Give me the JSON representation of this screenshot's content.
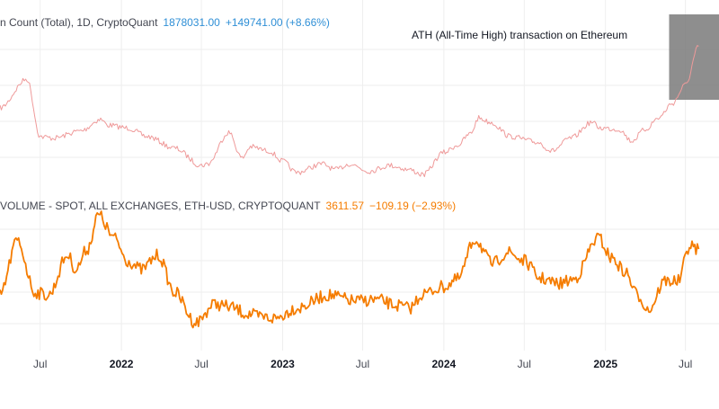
{
  "colors": {
    "background": "#ffffff",
    "grid": "#eeeeee",
    "top_series": "#ef9a9a",
    "bottom_series": "#f57c00",
    "legend_top_values": "#2f8fd6",
    "legend_bottom_values": "#f57c00",
    "highlight_box": "#7a7a7a",
    "axis_text": "#131722",
    "axis_text_month": "#434651"
  },
  "legend_top": {
    "name": "n Count (Total), 1D, CryptoQuant",
    "last": "1878031.00",
    "change": "+149741.00 (+8.66%)"
  },
  "legend_bottom": {
    "name": "VOLUME - SPOT, ALL EXCHANGES, ETH-USD, CRYPTOQUANT",
    "last": "3611.57",
    "change": "−109.19 (−2.93%)"
  },
  "annotation": {
    "text": "ATH (All-Time High) transaction on Ethereum"
  },
  "chart_data": [
    {
      "type": "line",
      "series": [
        {
          "name": "n Count (Total), 1D, CryptoQuant",
          "x": [
            "2021-04-01",
            "2021-06-01",
            "2021-07-01",
            "2021-08-01",
            "2021-10-01",
            "2021-11-15",
            "2021-12-01",
            "2022-01-15",
            "2022-03-01",
            "2022-05-01",
            "2022-07-01",
            "2022-07-15",
            "2022-09-01",
            "2022-10-01",
            "2022-10-20",
            "2022-12-01",
            "2023-01-01",
            "2023-02-01",
            "2023-04-01",
            "2023-05-01",
            "2023-06-01",
            "2023-07-15",
            "2023-09-01",
            "2023-10-15",
            "2023-11-15",
            "2024-01-01",
            "2024-02-01",
            "2024-03-01",
            "2024-03-20",
            "2024-04-15",
            "2024-06-01",
            "2024-08-01",
            "2024-09-01",
            "2024-10-15",
            "2024-12-01",
            "2024-12-20",
            "2025-02-01",
            "2025-03-01",
            "2025-04-01",
            "2025-05-01",
            "2025-06-01",
            "2025-07-01",
            "2025-07-31"
          ],
          "values": [
            1450000,
            1650000,
            1250000,
            1240000,
            1290000,
            1370000,
            1330000,
            1310000,
            1250000,
            1170000,
            1050000,
            1060000,
            1280000,
            1100000,
            1180000,
            1150000,
            1080000,
            1000000,
            1060000,
            1020000,
            1060000,
            1010000,
            1050000,
            1020000,
            985000,
            1140000,
            1190000,
            1270000,
            1380000,
            1350000,
            1250000,
            1210000,
            1150000,
            1240000,
            1350000,
            1310000,
            1300000,
            1220000,
            1300000,
            1380000,
            1480000,
            1610000,
            1878031
          ]
        }
      ]
    },
    {
      "type": "line",
      "series": [
        {
          "name": "VOLUME - SPOT, ALL EXCHANGES, ETH-USD, CRYPTOQUANT",
          "x": [
            "2021-04-01",
            "2021-05-10",
            "2021-06-20",
            "2021-07-20",
            "2021-09-01",
            "2021-09-20",
            "2021-10-15",
            "2021-11-10",
            "2021-12-15",
            "2022-01-15",
            "2022-02-15",
            "2022-03-25",
            "2022-05-01",
            "2022-06-18",
            "2022-08-01",
            "2022-09-01",
            "2022-10-15",
            "2022-11-10",
            "2022-12-15",
            "2023-02-01",
            "2023-04-15",
            "2023-06-15",
            "2023-08-01",
            "2023-09-15",
            "2023-10-15",
            "2023-11-15",
            "2024-01-01",
            "2024-02-01",
            "2024-03-12",
            "2024-04-20",
            "2024-05-25",
            "2024-07-01",
            "2024-08-05",
            "2024-09-15",
            "2024-10-20",
            "2024-12-16",
            "2025-01-15",
            "2025-02-15",
            "2025-03-15",
            "2025-04-09",
            "2025-05-15",
            "2025-06-15",
            "2025-07-10",
            "2025-07-31"
          ],
          "values": [
            2000,
            3900,
            2100,
            2000,
            3400,
            2900,
            3600,
            4800,
            4000,
            3200,
            2900,
            3400,
            2100,
            1050,
            1700,
            1600,
            1350,
            1250,
            1200,
            1550,
            2000,
            1800,
            1850,
            1650,
            1550,
            2050,
            2300,
            2550,
            3950,
            3100,
            3500,
            3200,
            2600,
            2400,
            2550,
            4000,
            3300,
            2800,
            2000,
            1500,
            2500,
            2500,
            3700,
            3611.57
          ]
        }
      ]
    }
  ],
  "axis": {
    "x_ticks": [
      {
        "label": "Jul",
        "date": "2021-07-01",
        "kind": "month"
      },
      {
        "label": "2022",
        "date": "2022-01-01",
        "kind": "year"
      },
      {
        "label": "Jul",
        "date": "2022-07-01",
        "kind": "month"
      },
      {
        "label": "2023",
        "date": "2023-01-01",
        "kind": "year"
      },
      {
        "label": "Jul",
        "date": "2023-07-01",
        "kind": "month"
      },
      {
        "label": "2024",
        "date": "2024-01-01",
        "kind": "year"
      },
      {
        "label": "Jul",
        "date": "2024-07-01",
        "kind": "month"
      },
      {
        "label": "2025",
        "date": "2025-01-01",
        "kind": "year"
      },
      {
        "label": "Jul",
        "date": "2025-07-01",
        "kind": "month"
      }
    ],
    "x_range": [
      "2021-04-01",
      "2025-09-15"
    ],
    "top_y_range": [
      950000,
      1950000
    ],
    "bottom_y_range": [
      700,
      4900
    ],
    "highlight_x_range": [
      "2025-05-25",
      "2025-09-15"
    ],
    "grid": true
  }
}
